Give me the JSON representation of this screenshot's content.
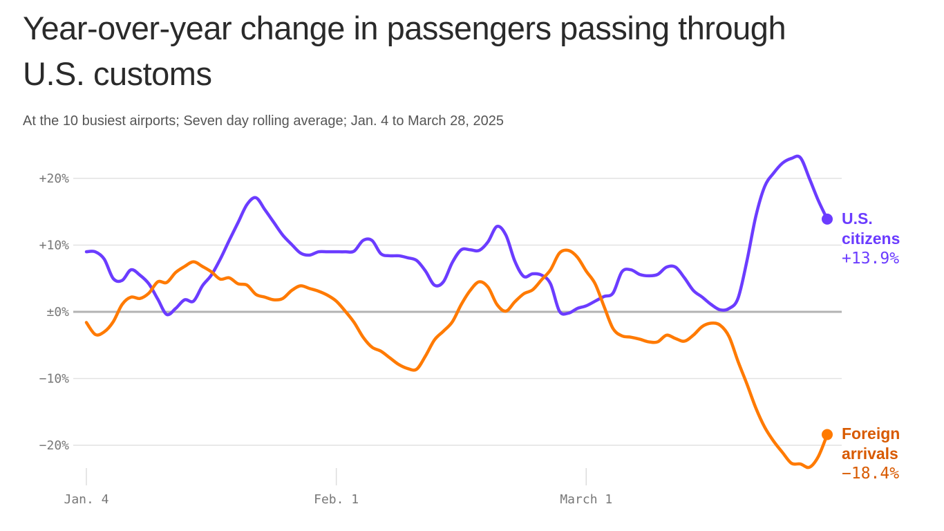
{
  "chart_data": {
    "type": "line",
    "title": "Year-over-year change in passengers passing through U.S. customs",
    "subtitle": "At the 10 busiest airports; Seven day rolling average; Jan. 4 to March 28, 2025",
    "xlabel": "",
    "ylabel": "",
    "ylim": [
      -24,
      24
    ],
    "yticks": [
      20,
      10,
      0,
      -10,
      -20
    ],
    "ytick_labels": [
      "+20%",
      "+10%",
      "±0%",
      "−10%",
      "−20%"
    ],
    "xtick_labels": [
      "Jan. 4",
      "Feb. 1",
      "March 1"
    ],
    "xtick_dates": [
      "2025-01-04",
      "2025-02-01",
      "2025-03-01"
    ],
    "grid": true,
    "legend": "end-labels-right",
    "x": [
      "2025-01-04",
      "2025-01-05",
      "2025-01-06",
      "2025-01-07",
      "2025-01-08",
      "2025-01-09",
      "2025-01-10",
      "2025-01-11",
      "2025-01-12",
      "2025-01-13",
      "2025-01-14",
      "2025-01-15",
      "2025-01-16",
      "2025-01-17",
      "2025-01-18",
      "2025-01-19",
      "2025-01-20",
      "2025-01-21",
      "2025-01-22",
      "2025-01-23",
      "2025-01-24",
      "2025-01-25",
      "2025-01-26",
      "2025-01-27",
      "2025-01-28",
      "2025-01-29",
      "2025-01-30",
      "2025-01-31",
      "2025-02-01",
      "2025-02-02",
      "2025-02-03",
      "2025-02-04",
      "2025-02-05",
      "2025-02-06",
      "2025-02-07",
      "2025-02-08",
      "2025-02-09",
      "2025-02-10",
      "2025-02-11",
      "2025-02-12",
      "2025-02-13",
      "2025-02-14",
      "2025-02-15",
      "2025-02-16",
      "2025-02-17",
      "2025-02-18",
      "2025-02-19",
      "2025-02-20",
      "2025-02-21",
      "2025-02-22",
      "2025-02-23",
      "2025-02-24",
      "2025-02-25",
      "2025-02-26",
      "2025-02-27",
      "2025-02-28",
      "2025-03-01",
      "2025-03-02",
      "2025-03-03",
      "2025-03-04",
      "2025-03-05",
      "2025-03-06",
      "2025-03-07",
      "2025-03-08",
      "2025-03-09",
      "2025-03-10",
      "2025-03-11",
      "2025-03-12",
      "2025-03-13",
      "2025-03-14",
      "2025-03-15",
      "2025-03-16",
      "2025-03-17",
      "2025-03-18",
      "2025-03-19",
      "2025-03-20",
      "2025-03-21",
      "2025-03-22",
      "2025-03-23",
      "2025-03-24",
      "2025-03-25",
      "2025-03-26",
      "2025-03-27",
      "2025-03-28"
    ],
    "series": [
      {
        "name": "U.S. citizens",
        "name_lines": [
          "U.S.",
          "citizens"
        ],
        "end_label": "+13.9%",
        "color": "#6b3cff",
        "values": [
          9.0,
          9.0,
          7.9,
          5.0,
          4.7,
          6.3,
          5.5,
          4.2,
          1.9,
          -0.4,
          0.5,
          1.8,
          1.6,
          3.9,
          5.5,
          7.9,
          10.7,
          13.4,
          16.1,
          17.1,
          15.3,
          13.4,
          11.5,
          10.1,
          8.8,
          8.5,
          9.0,
          9.0,
          9.0,
          9.0,
          9.1,
          10.7,
          10.7,
          8.7,
          8.4,
          8.4,
          8.1,
          7.7,
          6.1,
          4.0,
          4.5,
          7.4,
          9.3,
          9.3,
          9.2,
          10.5,
          12.8,
          11.5,
          7.6,
          5.3,
          5.7,
          5.5,
          4.2,
          0.1,
          -0.2,
          0.5,
          0.9,
          1.6,
          2.3,
          2.8,
          6.0,
          6.3,
          5.6,
          5.4,
          5.6,
          6.7,
          6.7,
          5.1,
          3.2,
          2.2,
          1.1,
          0.3,
          0.5,
          2.0,
          7.6,
          14.3,
          18.8,
          20.8,
          22.3,
          23.0,
          23.1,
          20.0,
          16.7,
          13.9
        ]
      },
      {
        "name": "Foreign arrivals",
        "name_lines": [
          "Foreign",
          "arrivals"
        ],
        "end_label": "−18.4%",
        "color": "#ff7a00",
        "label_color": "#d85a00",
        "values": [
          -1.6,
          -3.4,
          -3.0,
          -1.5,
          1.1,
          2.2,
          2.0,
          2.8,
          4.5,
          4.4,
          5.9,
          6.8,
          7.5,
          6.8,
          6.0,
          4.9,
          5.1,
          4.2,
          4.0,
          2.6,
          2.2,
          1.8,
          2.0,
          3.2,
          3.9,
          3.5,
          3.1,
          2.5,
          1.6,
          0.1,
          -1.6,
          -3.8,
          -5.3,
          -5.9,
          -6.9,
          -7.9,
          -8.5,
          -8.6,
          -6.6,
          -4.2,
          -2.9,
          -1.5,
          1.1,
          3.2,
          4.5,
          3.7,
          1.1,
          0.1,
          1.5,
          2.7,
          3.3,
          4.8,
          6.3,
          8.8,
          9.2,
          8.2,
          6.1,
          4.2,
          0.8,
          -2.5,
          -3.6,
          -3.8,
          -4.1,
          -4.5,
          -4.5,
          -3.5,
          -4.0,
          -4.4,
          -3.5,
          -2.2,
          -1.7,
          -2.0,
          -3.7,
          -7.4,
          -10.8,
          -14.4,
          -17.3,
          -19.4,
          -21.1,
          -22.7,
          -22.8,
          -23.3,
          -21.7,
          -18.4
        ]
      }
    ]
  }
}
